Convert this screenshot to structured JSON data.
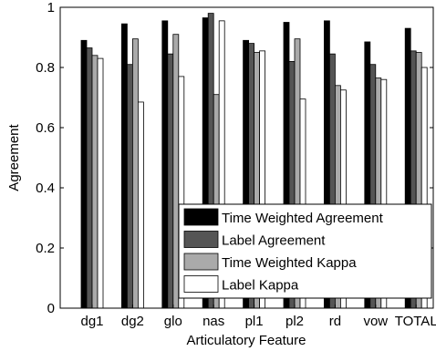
{
  "chart_data": {
    "type": "bar",
    "title": "",
    "xlabel": "Articulatory Feature",
    "ylabel": "Agreement",
    "ylim": [
      0,
      1
    ],
    "yticks": [
      0,
      0.2,
      0.4,
      0.6,
      0.8,
      1
    ],
    "ytick_labels": [
      "0",
      "0.2",
      "0.4",
      "0.6",
      "0.8",
      "1"
    ],
    "categories": [
      "dg1",
      "dg2",
      "glo",
      "nas",
      "pl1",
      "pl2",
      "rd",
      "vow",
      "TOTAL"
    ],
    "legend_position": "bottom-right",
    "grid": false,
    "series": [
      {
        "name": "Time Weighted Agreement",
        "color": "#000000",
        "values": [
          0.89,
          0.945,
          0.955,
          0.965,
          0.89,
          0.95,
          0.955,
          0.885,
          0.93
        ]
      },
      {
        "name": "Label Agreement",
        "color": "#555555",
        "values": [
          0.865,
          0.81,
          0.845,
          0.98,
          0.88,
          0.82,
          0.845,
          0.81,
          0.855
        ]
      },
      {
        "name": "Time Weighted Kappa",
        "color": "#aaaaaa",
        "values": [
          0.84,
          0.895,
          0.91,
          0.71,
          0.85,
          0.895,
          0.74,
          0.765,
          0.85
        ]
      },
      {
        "name": "Label Kappa",
        "color": "#ffffff",
        "values": [
          0.83,
          0.685,
          0.77,
          0.955,
          0.855,
          0.695,
          0.725,
          0.76,
          0.8
        ]
      }
    ]
  }
}
